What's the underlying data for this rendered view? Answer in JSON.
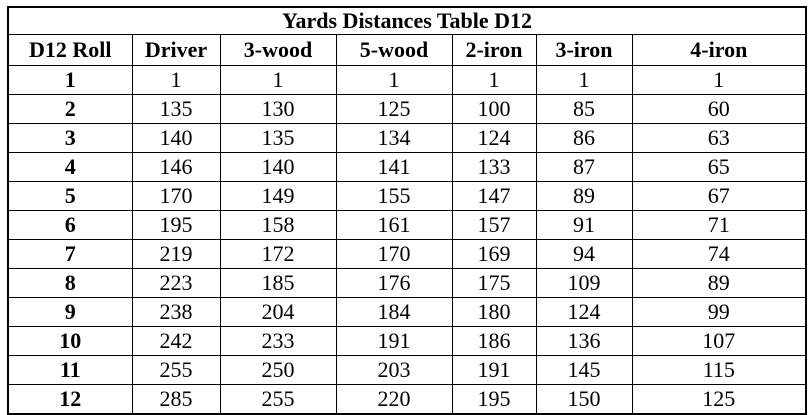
{
  "table": {
    "title": "Yards Distances Table D12",
    "headers": [
      "D12 Roll",
      "Driver",
      "3-wood",
      "5-wood",
      "2-iron",
      "3-iron",
      "4-iron"
    ],
    "rows": [
      [
        "1",
        "1",
        "1",
        "1",
        "1",
        "1",
        "1"
      ],
      [
        "2",
        "135",
        "130",
        "125",
        "100",
        "85",
        "60"
      ],
      [
        "3",
        "140",
        "135",
        "134",
        "124",
        "86",
        "63"
      ],
      [
        "4",
        "146",
        "140",
        "141",
        "133",
        "87",
        "65"
      ],
      [
        "5",
        "170",
        "149",
        "155",
        "147",
        "89",
        "67"
      ],
      [
        "6",
        "195",
        "158",
        "161",
        "157",
        "91",
        "71"
      ],
      [
        "7",
        "219",
        "172",
        "170",
        "169",
        "94",
        "74"
      ],
      [
        "8",
        "223",
        "185",
        "176",
        "175",
        "109",
        "89"
      ],
      [
        "9",
        "238",
        "204",
        "184",
        "180",
        "124",
        "99"
      ],
      [
        "10",
        "242",
        "233",
        "191",
        "186",
        "136",
        "107"
      ],
      [
        "11",
        "255",
        "250",
        "203",
        "191",
        "145",
        "115"
      ],
      [
        "12",
        "285",
        "255",
        "220",
        "195",
        "150",
        "125"
      ]
    ]
  }
}
